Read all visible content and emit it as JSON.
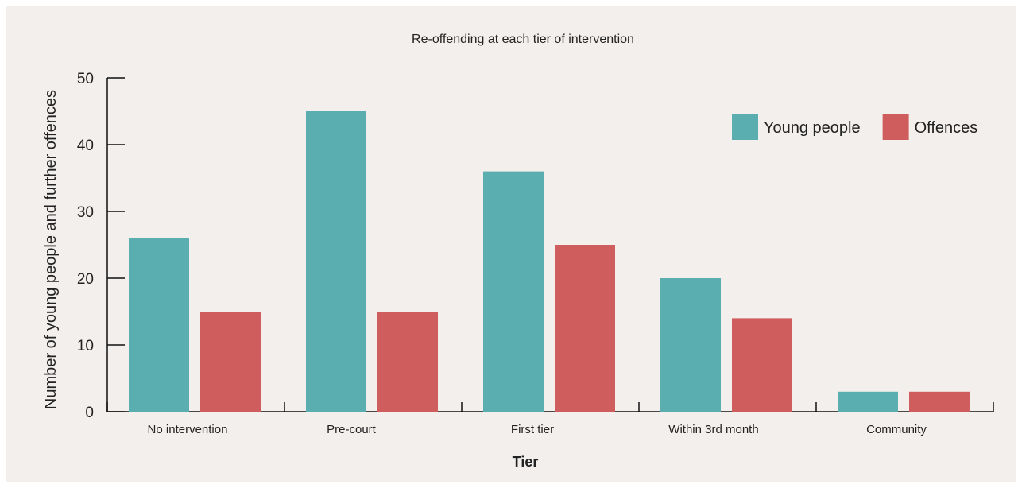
{
  "chart_data": {
    "type": "bar",
    "title": "Re-offending at each tier of intervention",
    "xlabel": "Tier",
    "ylabel": "Number of young people and further offences",
    "categories": [
      "No intervention",
      "Pre-court",
      "First tier",
      "Within 3rd month",
      "Community"
    ],
    "series": [
      {
        "name": "Young people",
        "color": "#5baeaf",
        "values": [
          26,
          45,
          36,
          20,
          3
        ]
      },
      {
        "name": "Offences",
        "color": "#cf5d5e",
        "values": [
          15,
          15,
          25,
          14,
          3
        ]
      }
    ],
    "ylim": [
      0,
      50
    ],
    "yticks": [
      0,
      10,
      20,
      30,
      40,
      50
    ],
    "grid": false,
    "legend": "top-right"
  }
}
